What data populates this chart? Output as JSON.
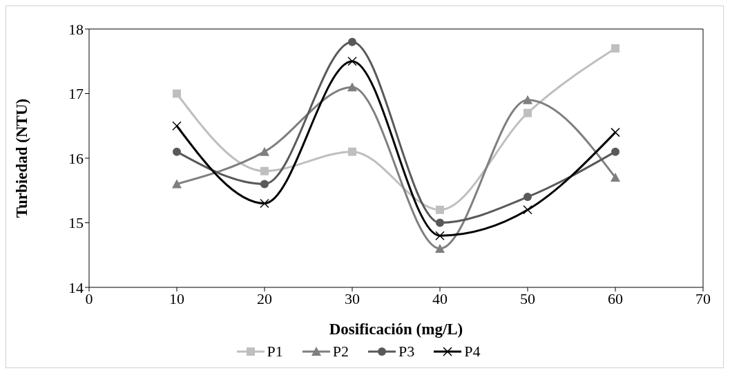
{
  "chart_data": {
    "type": "line",
    "xlabel": "Dosificación  (mg/L)",
    "ylabel": "Turbiedad (NTU)",
    "x": [
      10,
      20,
      30,
      40,
      50,
      60
    ],
    "xlim": [
      0,
      70
    ],
    "xticks": [
      0,
      10,
      20,
      30,
      40,
      50,
      60,
      70
    ],
    "ylim": [
      14,
      18
    ],
    "yticks": [
      14,
      15,
      16,
      17,
      18
    ],
    "grid": false,
    "legend": "bottom",
    "line_style": "solid",
    "series": [
      {
        "name": "P1",
        "color": "#bfbfbf",
        "marker": "square",
        "values": [
          17.0,
          15.8,
          16.1,
          15.2,
          16.7,
          17.7
        ]
      },
      {
        "name": "P2",
        "color": "#7f7f7f",
        "marker": "triangle",
        "values": [
          15.6,
          16.1,
          17.1,
          14.6,
          16.9,
          15.7
        ]
      },
      {
        "name": "P3",
        "color": "#595959",
        "marker": "circle",
        "values": [
          16.1,
          15.6,
          17.8,
          15.0,
          15.4,
          16.1
        ]
      },
      {
        "name": "P4",
        "color": "#000000",
        "marker": "cross",
        "values": [
          16.5,
          15.3,
          17.5,
          14.8,
          15.2,
          16.4
        ]
      }
    ]
  }
}
